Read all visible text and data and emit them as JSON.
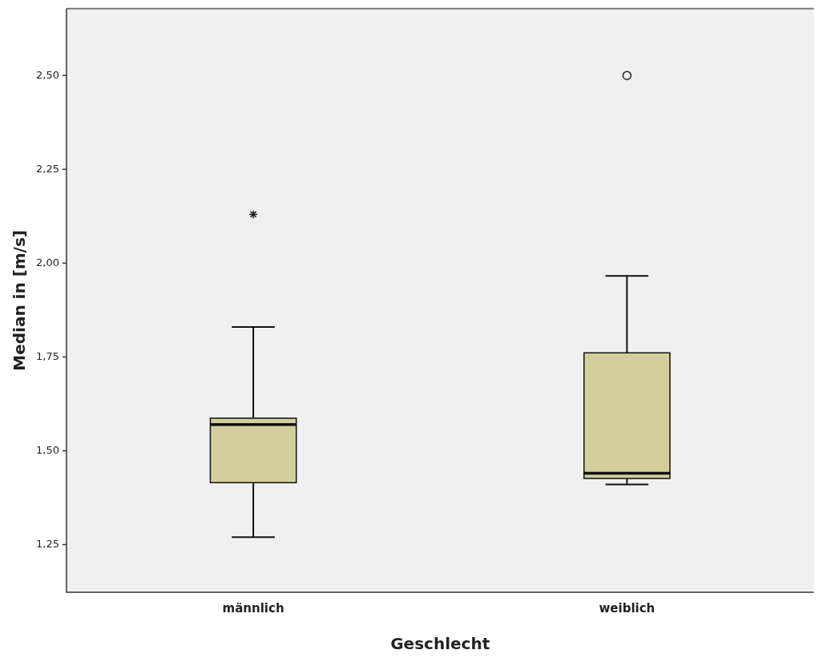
{
  "chart_data": {
    "type": "box",
    "xlabel": "Geschlecht",
    "ylabel": "Median in [m/s]",
    "categories": [
      "männlich",
      "weiblich"
    ],
    "boxes": [
      {
        "low": 1.27,
        "q1": 1.415,
        "median": 1.57,
        "q3": 1.587,
        "high": 1.83,
        "outliers": [
          2.13
        ]
      },
      {
        "low": 1.41,
        "q1": 1.426,
        "median": 1.44,
        "q3": 1.761,
        "high": 1.966,
        "outliers": [
          2.5
        ]
      }
    ],
    "color": "#d3ce9b",
    "ylim": [
      1.123,
      2.678
    ],
    "yticks": [
      {
        "value": 1.25,
        "label": "1,25"
      },
      {
        "value": 1.5,
        "label": "1,50"
      },
      {
        "value": 1.75,
        "label": "1,75"
      },
      {
        "value": 2,
        "label": "2,00"
      },
      {
        "value": 2.25,
        "label": "2,25"
      },
      {
        "value": 2.5,
        "label": "2,50"
      }
    ],
    "grid": false,
    "legend": false
  }
}
